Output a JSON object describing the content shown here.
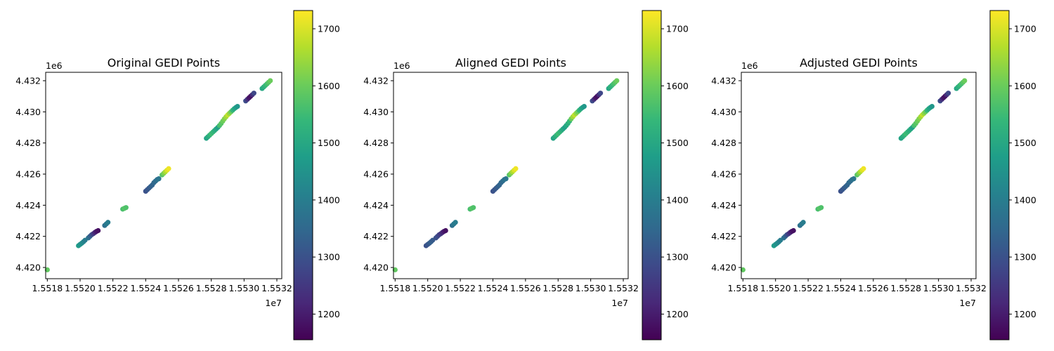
{
  "chart_data": [
    {
      "type": "scatter",
      "title": "Original GEDI Points",
      "x_exponent_label": "1e7",
      "y_exponent_label": "1e6",
      "xlim": [
        1.55179,
        1.55323
      ],
      "ylim": [
        4.41928,
        4.43254
      ],
      "x_ticks": [
        1.5518,
        1.552,
        1.5522,
        1.5524,
        1.5526,
        1.5528,
        1.553,
        1.5532
      ],
      "x_tick_labels": [
        "1.5518",
        "1.5520",
        "1.5522",
        "1.5524",
        "1.5526",
        "1.5528",
        "1.5530",
        "1.5532"
      ],
      "y_ticks": [
        4.42,
        4.422,
        4.424,
        4.426,
        4.428,
        4.43,
        4.432
      ],
      "y_tick_labels": [
        "4.420",
        "4.422",
        "4.424",
        "4.426",
        "4.428",
        "4.430",
        "4.432"
      ],
      "colorbar": {
        "colormap": "viridis",
        "min": 1155,
        "max": 1732,
        "ticks": [
          1200,
          1300,
          1400,
          1500,
          1600,
          1700
        ],
        "tick_labels": [
          "1200",
          "1300",
          "1400",
          "1500",
          "1600",
          "1700"
        ]
      },
      "points": [
        [
          1.5518,
          4.41985,
          1590
        ],
        [
          1.55199,
          4.4214,
          1470
        ],
        [
          1.552,
          4.42148,
          1455
        ],
        [
          1.55201,
          4.42156,
          1440
        ],
        [
          1.55202,
          4.42165,
          1420
        ],
        [
          1.55203,
          4.42175,
          1400
        ],
        [
          1.55205,
          4.4219,
          1370
        ],
        [
          1.55206,
          4.422,
          1340
        ],
        [
          1.55207,
          4.4221,
          1300
        ],
        [
          1.55208,
          4.42217,
          1260
        ],
        [
          1.55209,
          4.42225,
          1220
        ],
        [
          1.5521,
          4.42232,
          1190
        ],
        [
          1.55211,
          4.42237,
          1180
        ],
        [
          1.55215,
          4.4227,
          1370
        ],
        [
          1.55216,
          4.4228,
          1390
        ],
        [
          1.55217,
          4.4229,
          1400
        ],
        [
          1.55226,
          4.42375,
          1560
        ],
        [
          1.55227,
          4.4238,
          1580
        ],
        [
          1.55228,
          4.42385,
          1570
        ],
        [
          1.5524,
          4.4249,
          1300
        ],
        [
          1.55241,
          4.425,
          1310
        ],
        [
          1.55242,
          4.4251,
          1320
        ],
        [
          1.55243,
          4.4252,
          1330
        ],
        [
          1.55244,
          4.4253,
          1340
        ],
        [
          1.55245,
          4.42545,
          1350
        ],
        [
          1.55246,
          4.42555,
          1360
        ],
        [
          1.55247,
          4.42565,
          1370
        ],
        [
          1.55248,
          4.4257,
          1380
        ],
        [
          1.5525,
          4.42595,
          1580
        ],
        [
          1.55251,
          4.42605,
          1620
        ],
        [
          1.55252,
          4.42615,
          1660
        ],
        [
          1.55253,
          4.42625,
          1700
        ],
        [
          1.55254,
          4.42635,
          1720
        ],
        [
          1.55277,
          4.4283,
          1490
        ],
        [
          1.55278,
          4.4284,
          1510
        ],
        [
          1.55279,
          4.4285,
          1530
        ],
        [
          1.5528,
          4.4286,
          1550
        ],
        [
          1.55281,
          4.4287,
          1540
        ],
        [
          1.55282,
          4.4288,
          1520
        ],
        [
          1.55283,
          4.4289,
          1500
        ],
        [
          1.55284,
          4.429,
          1480
        ],
        [
          1.55285,
          4.42912,
          1560
        ],
        [
          1.55286,
          4.42925,
          1580
        ],
        [
          1.55287,
          4.4294,
          1600
        ],
        [
          1.55288,
          4.42955,
          1620
        ],
        [
          1.55289,
          4.42968,
          1650
        ],
        [
          1.5529,
          4.4298,
          1680
        ],
        [
          1.55291,
          4.4299,
          1640
        ],
        [
          1.55292,
          4.43,
          1600
        ],
        [
          1.55293,
          4.4301,
          1540
        ],
        [
          1.55294,
          4.4302,
          1500
        ],
        [
          1.55295,
          4.43028,
          1480
        ],
        [
          1.55296,
          4.43035,
          1460
        ],
        [
          1.55301,
          4.4307,
          1290
        ],
        [
          1.55302,
          4.4308,
          1240
        ],
        [
          1.55303,
          4.4309,
          1190
        ],
        [
          1.55304,
          4.431,
          1180
        ],
        [
          1.55305,
          4.4311,
          1230
        ],
        [
          1.55306,
          4.4312,
          1280
        ],
        [
          1.55311,
          4.4315,
          1500
        ],
        [
          1.55312,
          4.4316,
          1520
        ],
        [
          1.55313,
          4.4317,
          1540
        ],
        [
          1.55314,
          4.4318,
          1560
        ],
        [
          1.55315,
          4.4319,
          1580
        ],
        [
          1.55316,
          4.432,
          1600
        ]
      ]
    },
    {
      "type": "scatter",
      "title": "Aligned GEDI Points",
      "x_exponent_label": "1e7",
      "y_exponent_label": "1e6",
      "xlim": [
        1.55179,
        1.55323
      ],
      "ylim": [
        4.41928,
        4.43254
      ],
      "x_ticks": [
        1.5518,
        1.552,
        1.5522,
        1.5524,
        1.5526,
        1.5528,
        1.553,
        1.5532
      ],
      "x_tick_labels": [
        "1.5518",
        "1.5520",
        "1.5522",
        "1.5524",
        "1.5526",
        "1.5528",
        "1.5530",
        "1.5532"
      ],
      "y_ticks": [
        4.42,
        4.422,
        4.424,
        4.426,
        4.428,
        4.43,
        4.432
      ],
      "y_tick_labels": [
        "4.420",
        "4.422",
        "4.424",
        "4.426",
        "4.428",
        "4.430",
        "4.432"
      ],
      "colorbar": {
        "colormap": "viridis",
        "min": 1155,
        "max": 1732,
        "ticks": [
          1200,
          1300,
          1400,
          1500,
          1600,
          1700
        ],
        "tick_labels": [
          "1200",
          "1300",
          "1400",
          "1500",
          "1600",
          "1700"
        ]
      },
      "points": [
        [
          1.5518,
          4.41985,
          1590
        ],
        [
          1.55199,
          4.4214,
          1300
        ],
        [
          1.552,
          4.42148,
          1310
        ],
        [
          1.55201,
          4.42156,
          1320
        ],
        [
          1.55202,
          4.42165,
          1330
        ],
        [
          1.55203,
          4.42175,
          1320
        ],
        [
          1.55205,
          4.4219,
          1300
        ],
        [
          1.55206,
          4.422,
          1290
        ],
        [
          1.55207,
          4.4221,
          1270
        ],
        [
          1.55208,
          4.42217,
          1250
        ],
        [
          1.55209,
          4.42225,
          1220
        ],
        [
          1.5521,
          4.42232,
          1200
        ],
        [
          1.55211,
          4.42237,
          1180
        ],
        [
          1.55215,
          4.4227,
          1370
        ],
        [
          1.55216,
          4.4228,
          1390
        ],
        [
          1.55217,
          4.4229,
          1400
        ],
        [
          1.55226,
          4.42375,
          1560
        ],
        [
          1.55227,
          4.4238,
          1580
        ],
        [
          1.55228,
          4.42385,
          1570
        ],
        [
          1.5524,
          4.4249,
          1300
        ],
        [
          1.55241,
          4.425,
          1310
        ],
        [
          1.55242,
          4.4251,
          1320
        ],
        [
          1.55243,
          4.4252,
          1330
        ],
        [
          1.55244,
          4.4253,
          1340
        ],
        [
          1.55245,
          4.42545,
          1350
        ],
        [
          1.55246,
          4.42555,
          1360
        ],
        [
          1.55247,
          4.42565,
          1370
        ],
        [
          1.55248,
          4.4257,
          1380
        ],
        [
          1.5525,
          4.42595,
          1580
        ],
        [
          1.55251,
          4.42605,
          1620
        ],
        [
          1.55252,
          4.42615,
          1660
        ],
        [
          1.55253,
          4.42625,
          1700
        ],
        [
          1.55254,
          4.42635,
          1720
        ],
        [
          1.55277,
          4.4283,
          1490
        ],
        [
          1.55278,
          4.4284,
          1510
        ],
        [
          1.55279,
          4.4285,
          1530
        ],
        [
          1.5528,
          4.4286,
          1550
        ],
        [
          1.55281,
          4.4287,
          1540
        ],
        [
          1.55282,
          4.4288,
          1520
        ],
        [
          1.55283,
          4.4289,
          1500
        ],
        [
          1.55284,
          4.429,
          1480
        ],
        [
          1.55285,
          4.42912,
          1500
        ],
        [
          1.55286,
          4.42925,
          1520
        ],
        [
          1.55287,
          4.4294,
          1540
        ],
        [
          1.55288,
          4.42955,
          1600
        ],
        [
          1.55289,
          4.42968,
          1650
        ],
        [
          1.5529,
          4.4298,
          1680
        ],
        [
          1.55291,
          4.4299,
          1640
        ],
        [
          1.55292,
          4.43,
          1600
        ],
        [
          1.55293,
          4.4301,
          1540
        ],
        [
          1.55294,
          4.4302,
          1500
        ],
        [
          1.55295,
          4.43028,
          1480
        ],
        [
          1.55296,
          4.43035,
          1460
        ],
        [
          1.55301,
          4.4307,
          1290
        ],
        [
          1.55302,
          4.4308,
          1240
        ],
        [
          1.55303,
          4.4309,
          1190
        ],
        [
          1.55304,
          4.431,
          1180
        ],
        [
          1.55305,
          4.4311,
          1230
        ],
        [
          1.55306,
          4.4312,
          1280
        ],
        [
          1.55311,
          4.4315,
          1500
        ],
        [
          1.55312,
          4.4316,
          1520
        ],
        [
          1.55313,
          4.4317,
          1540
        ],
        [
          1.55314,
          4.4318,
          1560
        ],
        [
          1.55315,
          4.4319,
          1580
        ],
        [
          1.55316,
          4.432,
          1600
        ]
      ]
    },
    {
      "type": "scatter",
      "title": "Adjusted GEDI Points",
      "x_exponent_label": "1e7",
      "y_exponent_label": "1e6",
      "xlim": [
        1.55179,
        1.55323
      ],
      "ylim": [
        4.41928,
        4.43254
      ],
      "x_ticks": [
        1.5518,
        1.552,
        1.5522,
        1.5524,
        1.5526,
        1.5528,
        1.553,
        1.5532
      ],
      "x_tick_labels": [
        "1.5518",
        "1.5520",
        "1.5522",
        "1.5524",
        "1.5526",
        "1.5528",
        "1.5530",
        "1.5532"
      ],
      "y_ticks": [
        4.42,
        4.422,
        4.424,
        4.426,
        4.428,
        4.43,
        4.432
      ],
      "y_tick_labels": [
        "4.420",
        "4.422",
        "4.424",
        "4.426",
        "4.428",
        "4.430",
        "4.432"
      ],
      "colorbar": {
        "colormap": "viridis",
        "min": 1155,
        "max": 1732,
        "ticks": [
          1200,
          1300,
          1400,
          1500,
          1600,
          1700
        ],
        "tick_labels": [
          "1200",
          "1300",
          "1400",
          "1500",
          "1600",
          "1700"
        ]
      },
      "points": [
        [
          1.5518,
          4.41985,
          1590
        ],
        [
          1.55199,
          4.4214,
          1470
        ],
        [
          1.552,
          4.42148,
          1455
        ],
        [
          1.55201,
          4.42156,
          1440
        ],
        [
          1.55202,
          4.42165,
          1420
        ],
        [
          1.55203,
          4.42175,
          1400
        ],
        [
          1.55205,
          4.4219,
          1370
        ],
        [
          1.55206,
          4.422,
          1340
        ],
        [
          1.55207,
          4.4221,
          1300
        ],
        [
          1.55208,
          4.42217,
          1260
        ],
        [
          1.55209,
          4.42225,
          1220
        ],
        [
          1.5521,
          4.42232,
          1190
        ],
        [
          1.55211,
          4.42237,
          1180
        ],
        [
          1.55215,
          4.4227,
          1370
        ],
        [
          1.55216,
          4.4228,
          1390
        ],
        [
          1.55217,
          4.4229,
          1400
        ],
        [
          1.55226,
          4.42375,
          1560
        ],
        [
          1.55227,
          4.4238,
          1580
        ],
        [
          1.55228,
          4.42385,
          1570
        ],
        [
          1.5524,
          4.4249,
          1300
        ],
        [
          1.55241,
          4.425,
          1310
        ],
        [
          1.55242,
          4.4251,
          1320
        ],
        [
          1.55243,
          4.4252,
          1330
        ],
        [
          1.55244,
          4.4253,
          1340
        ],
        [
          1.55245,
          4.42545,
          1350
        ],
        [
          1.55246,
          4.42555,
          1360
        ],
        [
          1.55247,
          4.42565,
          1370
        ],
        [
          1.55248,
          4.4257,
          1380
        ],
        [
          1.5525,
          4.42595,
          1580
        ],
        [
          1.55251,
          4.42605,
          1620
        ],
        [
          1.55252,
          4.42615,
          1660
        ],
        [
          1.55253,
          4.42625,
          1700
        ],
        [
          1.55254,
          4.42635,
          1720
        ],
        [
          1.55277,
          4.4283,
          1490
        ],
        [
          1.55278,
          4.4284,
          1510
        ],
        [
          1.55279,
          4.4285,
          1530
        ],
        [
          1.5528,
          4.4286,
          1550
        ],
        [
          1.55281,
          4.4287,
          1540
        ],
        [
          1.55282,
          4.4288,
          1520
        ],
        [
          1.55283,
          4.4289,
          1500
        ],
        [
          1.55284,
          4.429,
          1480
        ],
        [
          1.55285,
          4.42912,
          1560
        ],
        [
          1.55286,
          4.42925,
          1580
        ],
        [
          1.55287,
          4.4294,
          1600
        ],
        [
          1.55288,
          4.42955,
          1620
        ],
        [
          1.55289,
          4.42968,
          1650
        ],
        [
          1.5529,
          4.4298,
          1680
        ],
        [
          1.55291,
          4.4299,
          1640
        ],
        [
          1.55292,
          4.43,
          1600
        ],
        [
          1.55293,
          4.4301,
          1540
        ],
        [
          1.55294,
          4.4302,
          1500
        ],
        [
          1.55295,
          4.43028,
          1480
        ],
        [
          1.55296,
          4.43035,
          1460
        ],
        [
          1.55301,
          4.4307,
          1290
        ],
        [
          1.55302,
          4.4308,
          1240
        ],
        [
          1.55303,
          4.4309,
          1190
        ],
        [
          1.55304,
          4.431,
          1180
        ],
        [
          1.55305,
          4.4311,
          1230
        ],
        [
          1.55306,
          4.4312,
          1280
        ],
        [
          1.55311,
          4.4315,
          1500
        ],
        [
          1.55312,
          4.4316,
          1520
        ],
        [
          1.55313,
          4.4317,
          1540
        ],
        [
          1.55314,
          4.4318,
          1560
        ],
        [
          1.55315,
          4.4319,
          1580
        ],
        [
          1.55316,
          4.432,
          1600
        ]
      ]
    }
  ]
}
